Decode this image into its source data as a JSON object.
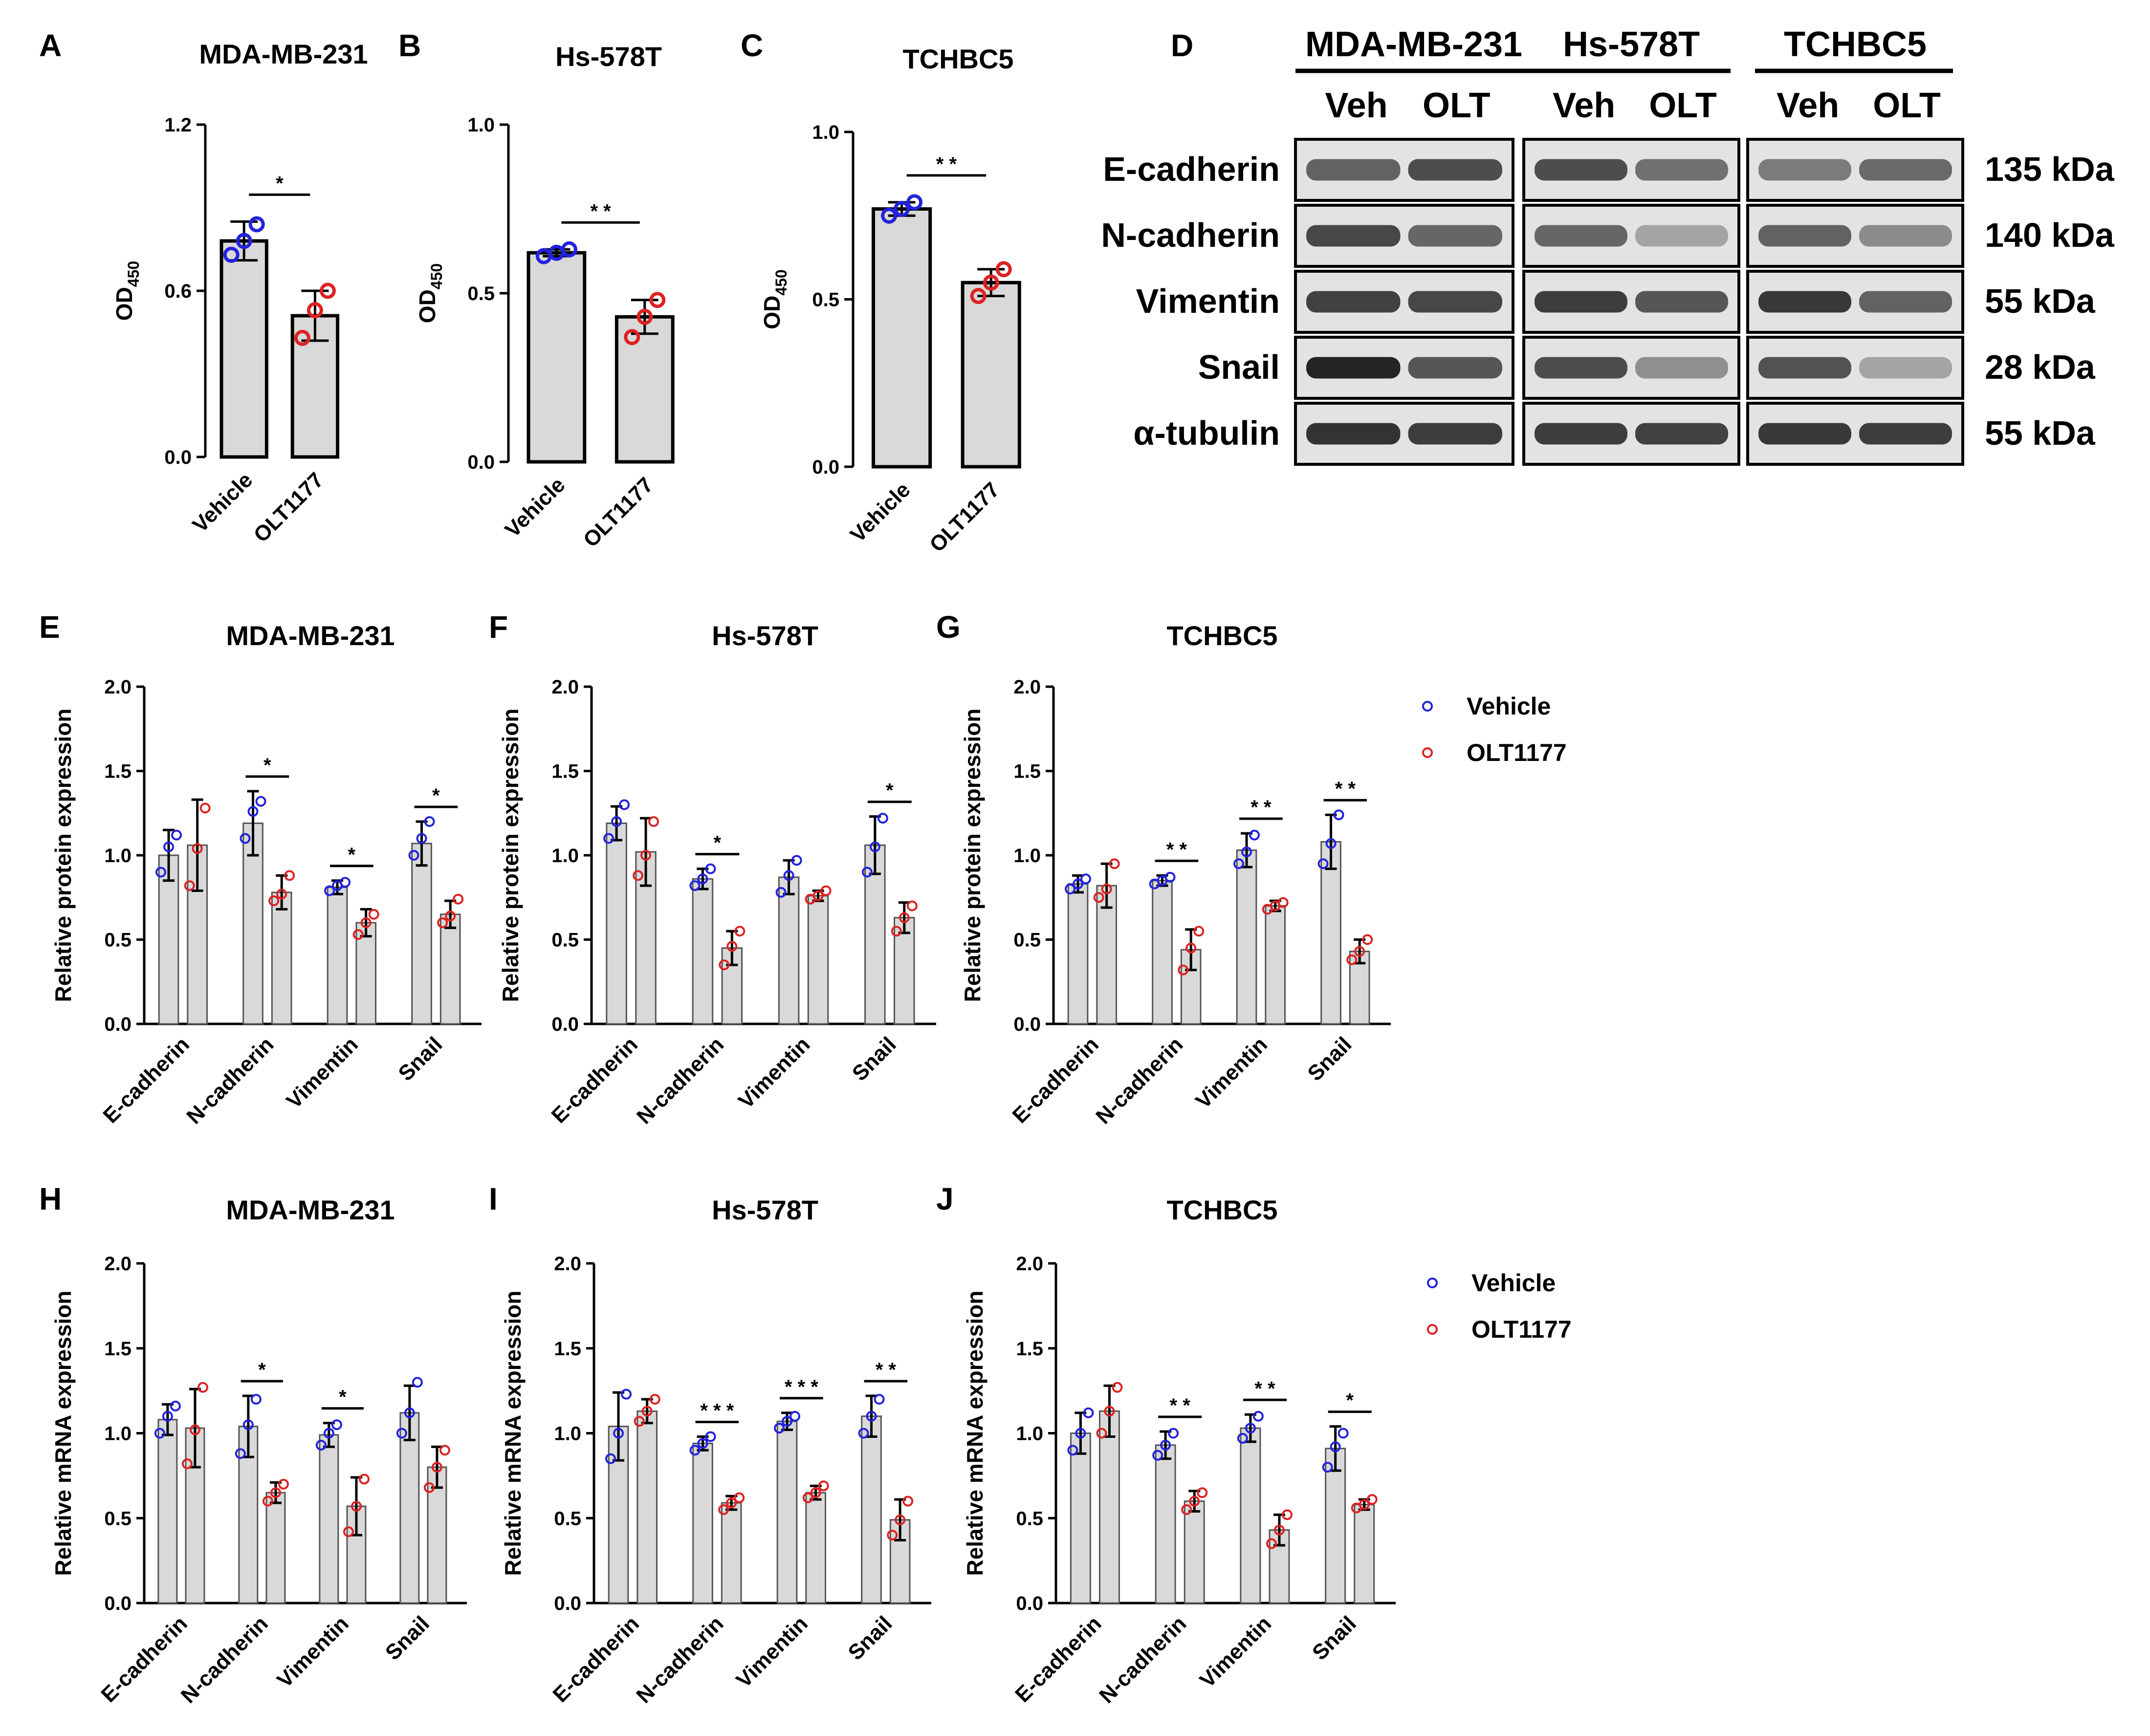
{
  "colors": {
    "vehicle": "#2222dd",
    "olt": "#dd2222",
    "bar_fill": "#d9d9d9",
    "bar_stroke": "#000000"
  },
  "od_panels": [
    {
      "letter": "A",
      "title": "MDA-MB-231",
      "ylabel": "OD",
      "ylabel_sub": "450",
      "ylim": [
        0,
        1.2
      ],
      "yticks": [
        "0.0",
        "0.6",
        "1.2"
      ],
      "categories": [
        "Vehicle",
        "OLT1177"
      ],
      "means": [
        0.78,
        0.51
      ],
      "sds": [
        0.07,
        0.09
      ],
      "points": [
        [
          0.73,
          0.78,
          0.84
        ],
        [
          0.43,
          0.53,
          0.6
        ]
      ],
      "sig": "*"
    },
    {
      "letter": "B",
      "title": "Hs-578T",
      "ylabel": "OD",
      "ylabel_sub": "450",
      "ylim": [
        0,
        1.0
      ],
      "yticks": [
        "0.0",
        "0.5",
        "1.0"
      ],
      "categories": [
        "Vehicle",
        "OLT1177"
      ],
      "means": [
        0.62,
        0.43
      ],
      "sds": [
        0.01,
        0.05
      ],
      "points": [
        [
          0.61,
          0.62,
          0.63
        ],
        [
          0.37,
          0.43,
          0.48
        ]
      ],
      "sig": "* *"
    },
    {
      "letter": "C",
      "title": "TCHBC5",
      "ylabel": "OD",
      "ylabel_sub": "450",
      "ylim": [
        0,
        1.0
      ],
      "yticks": [
        "0.0",
        "0.5",
        "1.0"
      ],
      "categories": [
        "Vehicle",
        "OLT1177"
      ],
      "means": [
        0.77,
        0.55
      ],
      "sds": [
        0.02,
        0.04
      ],
      "points": [
        [
          0.75,
          0.77,
          0.79
        ],
        [
          0.51,
          0.55,
          0.59
        ]
      ],
      "sig": "* *"
    }
  ],
  "western_blot": {
    "letter": "D",
    "cell_lines": [
      "MDA-MB-231",
      "Hs-578T",
      "TCHBC5"
    ],
    "lanes": [
      "Veh",
      "OLT"
    ],
    "rows": [
      {
        "label": "E-cadherin",
        "kda": "135 kDa",
        "intensities": [
          [
            0.62,
            0.72
          ],
          [
            0.72,
            0.55
          ],
          [
            0.5,
            0.58
          ]
        ]
      },
      {
        "label": "N-cadherin",
        "kda": "140 kDa",
        "intensities": [
          [
            0.75,
            0.6
          ],
          [
            0.6,
            0.3
          ],
          [
            0.62,
            0.42
          ]
        ]
      },
      {
        "label": "Vimentin",
        "kda": "55 kDa",
        "intensities": [
          [
            0.78,
            0.75
          ],
          [
            0.8,
            0.68
          ],
          [
            0.82,
            0.62
          ]
        ]
      },
      {
        "label": "Snail",
        "kda": "28 kDa",
        "intensities": [
          [
            0.92,
            0.68
          ],
          [
            0.72,
            0.4
          ],
          [
            0.7,
            0.3
          ]
        ]
      },
      {
        "label": "α-tubulin",
        "kda": "55 kDa",
        "intensities": [
          [
            0.85,
            0.8
          ],
          [
            0.8,
            0.78
          ],
          [
            0.82,
            0.8
          ]
        ]
      }
    ]
  },
  "legend": {
    "vehicle": "Vehicle",
    "olt": "OLT1177"
  },
  "expr_categories": [
    "E-cadherin",
    "N-cadherin",
    "Vimentin",
    "Snail"
  ],
  "expr_panels": [
    {
      "letter": "E",
      "title": "MDA-MB-231",
      "ylabel": "Relative protein expression",
      "ylim": [
        0,
        2.0
      ],
      "yticks": [
        "0.0",
        "0.5",
        "1.0",
        "1.5",
        "2.0"
      ],
      "vehicle": {
        "means": [
          1.0,
          1.19,
          0.81,
          1.07
        ],
        "sds": [
          0.15,
          0.19,
          0.04,
          0.13
        ],
        "points": [
          [
            0.9,
            1.05,
            1.12
          ],
          [
            1.1,
            1.26,
            1.32
          ],
          [
            0.79,
            0.82,
            0.84
          ],
          [
            1.0,
            1.1,
            1.2
          ]
        ]
      },
      "olt": {
        "means": [
          1.06,
          0.78,
          0.6,
          0.65
        ],
        "sds": [
          0.27,
          0.1,
          0.08,
          0.08
        ],
        "points": [
          [
            0.82,
            1.04,
            1.28
          ],
          [
            0.73,
            0.77,
            0.88
          ],
          [
            0.53,
            0.6,
            0.65
          ],
          [
            0.6,
            0.64,
            0.74
          ]
        ]
      },
      "sig": [
        "",
        "*",
        "*",
        "*"
      ],
      "legend": false
    },
    {
      "letter": "F",
      "title": "Hs-578T",
      "ylabel": "Relative protein expression",
      "ylim": [
        0,
        2.0
      ],
      "yticks": [
        "0.0",
        "0.5",
        "1.0",
        "1.5",
        "2.0"
      ],
      "vehicle": {
        "means": [
          1.19,
          0.86,
          0.87,
          1.06
        ],
        "sds": [
          0.1,
          0.06,
          0.1,
          0.17
        ],
        "points": [
          [
            1.1,
            1.2,
            1.3
          ],
          [
            0.82,
            0.86,
            0.92
          ],
          [
            0.78,
            0.88,
            0.97
          ],
          [
            0.9,
            1.05,
            1.22
          ]
        ]
      },
      "olt": {
        "means": [
          1.02,
          0.45,
          0.76,
          0.63
        ],
        "sds": [
          0.2,
          0.1,
          0.03,
          0.09
        ],
        "points": [
          [
            0.88,
            1.0,
            1.2
          ],
          [
            0.35,
            0.46,
            0.55
          ],
          [
            0.74,
            0.76,
            0.79
          ],
          [
            0.55,
            0.63,
            0.7
          ]
        ]
      },
      "sig": [
        "",
        "*",
        "",
        "*"
      ],
      "legend": false
    },
    {
      "letter": "G",
      "title": "TCHBC5",
      "ylabel": "Relative protein expression",
      "ylim": [
        0,
        2.0
      ],
      "yticks": [
        "0.0",
        "0.5",
        "1.0",
        "1.5",
        "2.0"
      ],
      "vehicle": {
        "means": [
          0.83,
          0.85,
          1.03,
          1.08
        ],
        "sds": [
          0.05,
          0.03,
          0.1,
          0.16
        ],
        "points": [
          [
            0.8,
            0.83,
            0.86
          ],
          [
            0.83,
            0.85,
            0.87
          ],
          [
            0.95,
            1.02,
            1.12
          ],
          [
            0.95,
            1.07,
            1.24
          ]
        ]
      },
      "olt": {
        "means": [
          0.82,
          0.44,
          0.7,
          0.43
        ],
        "sds": [
          0.13,
          0.12,
          0.03,
          0.07
        ],
        "points": [
          [
            0.75,
            0.8,
            0.95
          ],
          [
            0.32,
            0.45,
            0.55
          ],
          [
            0.68,
            0.7,
            0.72
          ],
          [
            0.38,
            0.43,
            0.5
          ]
        ]
      },
      "sig": [
        "",
        "* *",
        "* *",
        "* *"
      ],
      "legend": true
    },
    {
      "letter": "H",
      "title": "MDA-MB-231",
      "ylabel": "Relative mRNA expression",
      "ylim": [
        0,
        2.0
      ],
      "yticks": [
        "0.0",
        "0.5",
        "1.0",
        "1.5",
        "2.0"
      ],
      "vehicle": {
        "means": [
          1.08,
          1.04,
          0.99,
          1.12
        ],
        "sds": [
          0.09,
          0.18,
          0.07,
          0.16
        ],
        "points": [
          [
            1.0,
            1.1,
            1.16
          ],
          [
            0.88,
            1.05,
            1.2
          ],
          [
            0.93,
            1.0,
            1.05
          ],
          [
            1.0,
            1.12,
            1.3
          ]
        ]
      },
      "olt": {
        "means": [
          1.03,
          0.65,
          0.57,
          0.8
        ],
        "sds": [
          0.23,
          0.06,
          0.17,
          0.12
        ],
        "points": [
          [
            0.82,
            1.02,
            1.27
          ],
          [
            0.6,
            0.65,
            0.7
          ],
          [
            0.42,
            0.57,
            0.73
          ],
          [
            0.68,
            0.8,
            0.9
          ]
        ]
      },
      "sig": [
        "",
        "*",
        "*",
        ""
      ],
      "legend": false
    },
    {
      "letter": "I",
      "title": "Hs-578T",
      "ylabel": "Relative mRNA expression",
      "ylim": [
        0,
        2.0
      ],
      "yticks": [
        "0.0",
        "0.5",
        "1.0",
        "1.5",
        "2.0"
      ],
      "vehicle": {
        "means": [
          1.04,
          0.94,
          1.07,
          1.1
        ],
        "sds": [
          0.2,
          0.04,
          0.05,
          0.12
        ],
        "points": [
          [
            0.85,
            1.0,
            1.23
          ],
          [
            0.9,
            0.94,
            0.98
          ],
          [
            1.03,
            1.07,
            1.1
          ],
          [
            1.0,
            1.1,
            1.2
          ]
        ]
      },
      "olt": {
        "means": [
          1.13,
          0.59,
          0.65,
          0.49
        ],
        "sds": [
          0.07,
          0.04,
          0.04,
          0.12
        ],
        "points": [
          [
            1.07,
            1.13,
            1.2
          ],
          [
            0.55,
            0.59,
            0.62
          ],
          [
            0.62,
            0.65,
            0.69
          ],
          [
            0.4,
            0.49,
            0.6
          ]
        ]
      },
      "sig": [
        "",
        "* * *",
        "* * *",
        "* *"
      ],
      "legend": false
    },
    {
      "letter": "J",
      "title": "TCHBC5",
      "ylabel": "Relative mRNA expression",
      "ylim": [
        0,
        2.0
      ],
      "yticks": [
        "0.0",
        "0.5",
        "1.0",
        "1.5",
        "2.0"
      ],
      "vehicle": {
        "means": [
          1.0,
          0.93,
          1.03,
          0.91
        ],
        "sds": [
          0.12,
          0.08,
          0.08,
          0.13
        ],
        "points": [
          [
            0.9,
            1.0,
            1.12
          ],
          [
            0.87,
            0.93,
            1.0
          ],
          [
            0.97,
            1.03,
            1.1
          ],
          [
            0.8,
            0.92,
            1.0
          ]
        ]
      },
      "olt": {
        "means": [
          1.13,
          0.6,
          0.43,
          0.58
        ],
        "sds": [
          0.15,
          0.06,
          0.09,
          0.03
        ],
        "points": [
          [
            1.0,
            1.13,
            1.27
          ],
          [
            0.55,
            0.6,
            0.65
          ],
          [
            0.35,
            0.43,
            0.52
          ],
          [
            0.56,
            0.58,
            0.61
          ]
        ]
      },
      "sig": [
        "",
        "* *",
        "* *",
        "*"
      ],
      "legend": true
    }
  ],
  "chart_data": [
    {
      "type": "bar",
      "panel": "A",
      "title": "MDA-MB-231",
      "ylabel": "OD450",
      "ylim": [
        0,
        1.2
      ],
      "categories": [
        "Vehicle",
        "OLT1177"
      ],
      "values": [
        0.78,
        0.51
      ]
    },
    {
      "type": "bar",
      "panel": "B",
      "title": "Hs-578T",
      "ylabel": "OD450",
      "ylim": [
        0,
        1.0
      ],
      "categories": [
        "Vehicle",
        "OLT1177"
      ],
      "values": [
        0.62,
        0.43
      ]
    },
    {
      "type": "bar",
      "panel": "C",
      "title": "TCHBC5",
      "ylabel": "OD450",
      "ylim": [
        0,
        1.0
      ],
      "categories": [
        "Vehicle",
        "OLT1177"
      ],
      "values": [
        0.77,
        0.55
      ]
    },
    {
      "type": "bar",
      "panel": "E",
      "title": "MDA-MB-231",
      "ylabel": "Relative protein expression",
      "ylim": [
        0,
        2.0
      ],
      "categories": [
        "E-cadherin",
        "N-cadherin",
        "Vimentin",
        "Snail"
      ],
      "series": [
        {
          "name": "Vehicle",
          "values": [
            1.0,
            1.19,
            0.81,
            1.07
          ]
        },
        {
          "name": "OLT1177",
          "values": [
            1.06,
            0.78,
            0.6,
            0.65
          ]
        }
      ]
    },
    {
      "type": "bar",
      "panel": "F",
      "title": "Hs-578T",
      "ylabel": "Relative protein expression",
      "ylim": [
        0,
        2.0
      ],
      "categories": [
        "E-cadherin",
        "N-cadherin",
        "Vimentin",
        "Snail"
      ],
      "series": [
        {
          "name": "Vehicle",
          "values": [
            1.19,
            0.86,
            0.87,
            1.06
          ]
        },
        {
          "name": "OLT1177",
          "values": [
            1.02,
            0.45,
            0.76,
            0.63
          ]
        }
      ]
    },
    {
      "type": "bar",
      "panel": "G",
      "title": "TCHBC5",
      "ylabel": "Relative protein expression",
      "ylim": [
        0,
        2.0
      ],
      "categories": [
        "E-cadherin",
        "N-cadherin",
        "Vimentin",
        "Snail"
      ],
      "series": [
        {
          "name": "Vehicle",
          "values": [
            0.83,
            0.85,
            1.03,
            1.08
          ]
        },
        {
          "name": "OLT1177",
          "values": [
            0.82,
            0.44,
            0.7,
            0.43
          ]
        }
      ]
    },
    {
      "type": "bar",
      "panel": "H",
      "title": "MDA-MB-231",
      "ylabel": "Relative mRNA expression",
      "ylim": [
        0,
        2.0
      ],
      "categories": [
        "E-cadherin",
        "N-cadherin",
        "Vimentin",
        "Snail"
      ],
      "series": [
        {
          "name": "Vehicle",
          "values": [
            1.08,
            1.04,
            0.99,
            1.12
          ]
        },
        {
          "name": "OLT1177",
          "values": [
            1.03,
            0.65,
            0.57,
            0.8
          ]
        }
      ]
    },
    {
      "type": "bar",
      "panel": "I",
      "title": "Hs-578T",
      "ylabel": "Relative mRNA expression",
      "ylim": [
        0,
        2.0
      ],
      "categories": [
        "E-cadherin",
        "N-cadherin",
        "Vimentin",
        "Snail"
      ],
      "series": [
        {
          "name": "Vehicle",
          "values": [
            1.04,
            0.94,
            1.07,
            1.1
          ]
        },
        {
          "name": "OLT1177",
          "values": [
            1.13,
            0.59,
            0.65,
            0.49
          ]
        }
      ]
    },
    {
      "type": "bar",
      "panel": "J",
      "title": "TCHBC5",
      "ylabel": "Relative mRNA expression",
      "ylim": [
        0,
        2.0
      ],
      "categories": [
        "E-cadherin",
        "N-cadherin",
        "Vimentin",
        "Snail"
      ],
      "series": [
        {
          "name": "Vehicle",
          "values": [
            1.0,
            0.93,
            1.03,
            0.91
          ]
        },
        {
          "name": "OLT1177",
          "values": [
            1.13,
            0.6,
            0.43,
            0.58
          ]
        }
      ]
    }
  ]
}
